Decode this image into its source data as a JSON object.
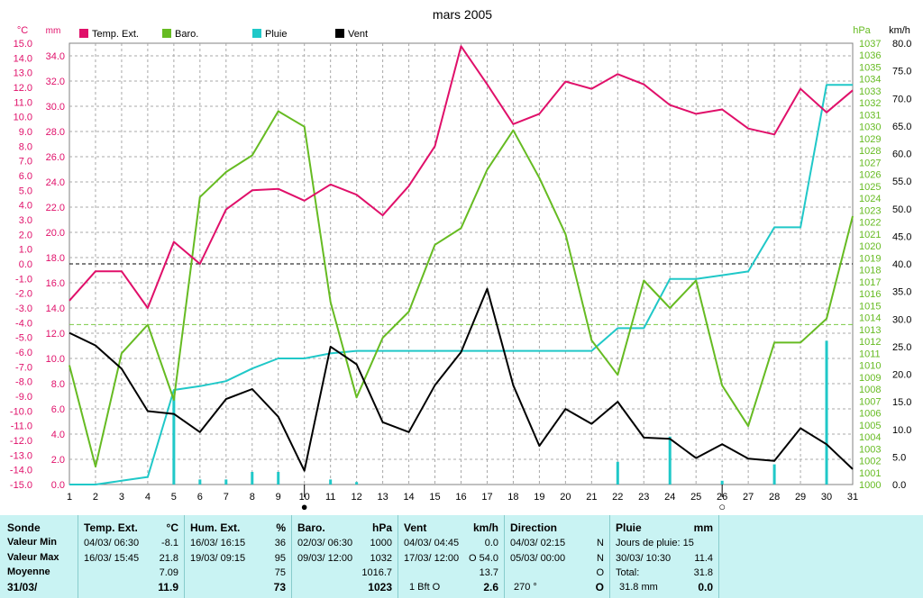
{
  "chart_data": {
    "type": "line",
    "title": "mars 2005",
    "x": [
      1,
      2,
      3,
      4,
      5,
      6,
      7,
      8,
      9,
      10,
      11,
      12,
      13,
      14,
      15,
      16,
      17,
      18,
      19,
      20,
      21,
      22,
      23,
      24,
      25,
      26,
      27,
      28,
      29,
      30,
      31
    ],
    "axes": {
      "temp": {
        "unit": "°C",
        "color": "#e0106a",
        "ylim": [
          -15,
          15
        ],
        "ticks": [
          "15.0",
          "14.0",
          "13.0",
          "12.0",
          "11.0",
          "10.0",
          "9.0",
          "8.0",
          "7.0",
          "6.0",
          "5.0",
          "4.0",
          "3.0",
          "2.0",
          "1.0",
          "0.0",
          "-1.0",
          "-2.0",
          "-3.0",
          "-4.0",
          "-5.0",
          "-6.0",
          "-7.0",
          "-8.0",
          "-9.0",
          "-10.0",
          "-11.0",
          "-12.0",
          "-13.0",
          "-14.0",
          "-15.0"
        ]
      },
      "rain": {
        "unit": "mm",
        "color": "#e0106a",
        "ylim": [
          0,
          35
        ],
        "ticks": [
          "34.0",
          "32.0",
          "30.0",
          "28.0",
          "26.0",
          "24.0",
          "22.0",
          "20.0",
          "18.0",
          "16.0",
          "14.0",
          "12.0",
          "10.0",
          "8.0",
          "6.0",
          "4.0",
          "2.0",
          "0.0"
        ]
      },
      "baro": {
        "unit": "hPa",
        "color": "#66bb22",
        "ylim": [
          1000,
          1037
        ],
        "ticks": [
          "1037",
          "1036",
          "1035",
          "1034",
          "1033",
          "1032",
          "1031",
          "1030",
          "1029",
          "1028",
          "1027",
          "1026",
          "1025",
          "1024",
          "1023",
          "1022",
          "1021",
          "1020",
          "1019",
          "1018",
          "1017",
          "1016",
          "1015",
          "1014",
          "1013",
          "1012",
          "1011",
          "1010",
          "1009",
          "1008",
          "1007",
          "1006",
          "1005",
          "1004",
          "1003",
          "1002",
          "1001",
          "1000"
        ]
      },
      "wind": {
        "unit": "km/h",
        "color": "#000000",
        "ylim": [
          0,
          80
        ],
        "ticks": [
          "80.0",
          "75.0",
          "70.0",
          "65.0",
          "60.0",
          "55.0",
          "50.0",
          "45.0",
          "40.0",
          "35.0",
          "30.0",
          "25.0",
          "20.0",
          "15.0",
          "10.0",
          "5.0",
          "0.0"
        ]
      }
    },
    "legend": [
      "Temp. Ext.",
      "Baro.",
      "Pluie",
      "Vent"
    ],
    "series": [
      {
        "name": "Temp. Ext.",
        "axis": "temp",
        "color": "#e0106a",
        "values": [
          -2.5,
          -0.5,
          -0.5,
          -3.0,
          1.5,
          0.0,
          3.7,
          5.0,
          5.1,
          4.3,
          5.4,
          4.7,
          3.3,
          5.3,
          8.0,
          14.8,
          12.2,
          9.5,
          10.2,
          12.4,
          11.9,
          12.9,
          12.2,
          10.8,
          10.2,
          10.5,
          9.2,
          8.8,
          11.9,
          10.3,
          11.8
        ]
      },
      {
        "name": "Baro.",
        "axis": "baro",
        "color": "#66bb22",
        "values": [
          1010,
          1001.5,
          1011,
          1013.4,
          1007.1,
          1024.1,
          1026.2,
          1027.6,
          1031.3,
          1030,
          1015.3,
          1007.3,
          1012.3,
          1014.5,
          1020.1,
          1021.5,
          1026.4,
          1029.7,
          1025.7,
          1021,
          1012.1,
          1009.2,
          1017.1,
          1014.8,
          1017.1,
          1008.3,
          1004.9,
          1011.9,
          1011.9,
          1013.9,
          1022.5
        ]
      },
      {
        "name": "Pluie",
        "axis": "rain",
        "color": "#20c8c8",
        "values": [
          0,
          0,
          0.3,
          0.6,
          7.5,
          7.8,
          8.2,
          9.2,
          10.0,
          10.0,
          10.4,
          10.6,
          10.6,
          10.6,
          10.6,
          10.6,
          10.6,
          10.6,
          10.6,
          10.6,
          10.6,
          12.4,
          12.4,
          16.3,
          16.3,
          16.6,
          16.9,
          20.4,
          20.4,
          31.7,
          31.7
        ]
      },
      {
        "name": "Vent",
        "axis": "wind",
        "color": "#000000",
        "values": [
          27.5,
          25.2,
          21.0,
          13.3,
          12.8,
          9.5,
          15.5,
          17.3,
          12.3,
          2.5,
          25.0,
          21.8,
          11.3,
          9.5,
          18.0,
          24.0,
          35.5,
          18.0,
          7.0,
          13.7,
          11.0,
          15.0,
          8.5,
          8.3,
          4.8,
          7.3,
          4.7,
          4.3,
          10.2,
          7.3,
          2.8
        ]
      }
    ],
    "daily_rain": {
      "axis": "rain",
      "color": "#20c8c8",
      "days": [
        5,
        6,
        7,
        8,
        9,
        11,
        12,
        22,
        24,
        26,
        28,
        30
      ],
      "values": [
        7.0,
        0.4,
        0.4,
        1.0,
        1.0,
        0.4,
        0.2,
        1.8,
        3.8,
        0.3,
        1.6,
        11.4
      ]
    },
    "moon_phases": [
      {
        "day": 10,
        "phase": "new",
        "symbol": "●"
      },
      {
        "day": 26,
        "phase": "full",
        "symbol": "○"
      }
    ],
    "wind_reference": 29,
    "zero_reference": 0
  },
  "summary": {
    "sonde": {
      "header": "Sonde",
      "rows": [
        "Valeur Min",
        "Valeur Max",
        "Moyenne",
        "31/03/"
      ]
    },
    "temp": {
      "header": "Temp. Ext.",
      "unit": "°C",
      "min_time": "04/03/ 06:30",
      "min_val": "-8.1",
      "max_time": "16/03/ 15:45",
      "max_val": "21.8",
      "avg": "7.09",
      "last": "11.9"
    },
    "hum": {
      "header": "Hum. Ext.",
      "unit": "%",
      "min_time": "16/03/ 16:15",
      "min_val": "36",
      "max_time": "19/03/ 09:15",
      "max_val": "95",
      "avg": "75",
      "last": "73"
    },
    "baro": {
      "header": "Baro.",
      "unit": "hPa",
      "min_time": "02/03/ 06:30",
      "min_val": "1000",
      "max_time": "09/03/ 12:00",
      "max_val": "1032",
      "avg": "1016.7",
      "last": "1023"
    },
    "vent": {
      "header": "Vent",
      "unit": "km/h",
      "min_time": "04/03/ 04:45",
      "min_val": "0.0",
      "max_time": "17/03/ 12:00",
      "max_dir": "O",
      "max_val": "54.0",
      "avg": "13.7",
      "last_bft": "1 Bft O",
      "last": "2.6"
    },
    "direction": {
      "header": "Direction",
      "min_time": "04/03/ 02:15",
      "min_dir": "N",
      "max_time": "05/03/ 00:00",
      "max_dir": "N",
      "avg_dir": "O",
      "last_deg": "270 °",
      "last_dir": "O"
    },
    "pluie": {
      "header": "Pluie",
      "unit": "mm",
      "days_label": "Jours de pluie: 15",
      "max_time": "30/03/ 10:30",
      "max_val": "11.4",
      "total_label": "Total:",
      "total": "31.8",
      "month": "31.8 mm",
      "last": "0.0"
    }
  }
}
